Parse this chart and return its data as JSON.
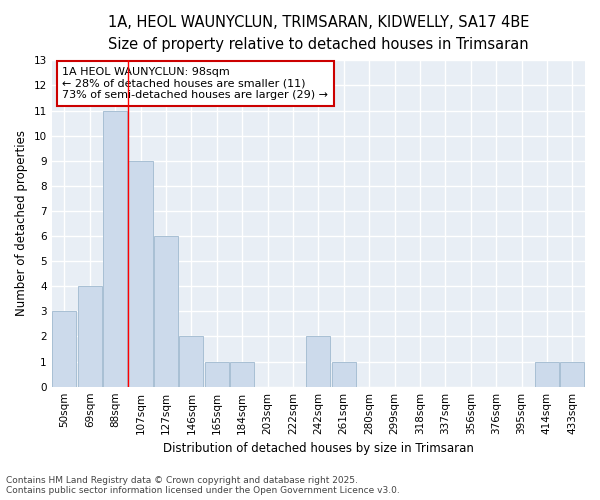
{
  "title_line1": "1A, HEOL WAUNYCLUN, TRIMSARAN, KIDWELLY, SA17 4BE",
  "title_line2": "Size of property relative to detached houses in Trimsaran",
  "xlabel": "Distribution of detached houses by size in Trimsaran",
  "ylabel": "Number of detached properties",
  "categories": [
    "50sqm",
    "69sqm",
    "88sqm",
    "107sqm",
    "127sqm",
    "146sqm",
    "165sqm",
    "184sqm",
    "203sqm",
    "222sqm",
    "242sqm",
    "261sqm",
    "280sqm",
    "299sqm",
    "318sqm",
    "337sqm",
    "356sqm",
    "376sqm",
    "395sqm",
    "414sqm",
    "433sqm"
  ],
  "values": [
    3,
    4,
    11,
    9,
    6,
    2,
    1,
    1,
    0,
    0,
    2,
    1,
    0,
    0,
    0,
    0,
    0,
    0,
    0,
    1,
    1
  ],
  "bar_color": "#ccdaeb",
  "bar_edge_color": "#a8bfd4",
  "red_line_index": 2.5,
  "annotation_text": "1A HEOL WAUNYCLUN: 98sqm\n← 28% of detached houses are smaller (11)\n73% of semi-detached houses are larger (29) →",
  "annotation_box_color": "#ffffff",
  "annotation_box_edge_color": "#cc0000",
  "ylim": [
    0,
    13
  ],
  "yticks": [
    0,
    1,
    2,
    3,
    4,
    5,
    6,
    7,
    8,
    9,
    10,
    11,
    12,
    13
  ],
  "footnote_line1": "Contains HM Land Registry data © Crown copyright and database right 2025.",
  "footnote_line2": "Contains public sector information licensed under the Open Government Licence v3.0.",
  "bg_color": "#ffffff",
  "plot_bg_color": "#e8eef5",
  "grid_color": "#ffffff",
  "title_fontsize": 10.5,
  "subtitle_fontsize": 9,
  "axis_label_fontsize": 8.5,
  "tick_fontsize": 7.5,
  "annotation_fontsize": 8,
  "footnote_fontsize": 6.5
}
